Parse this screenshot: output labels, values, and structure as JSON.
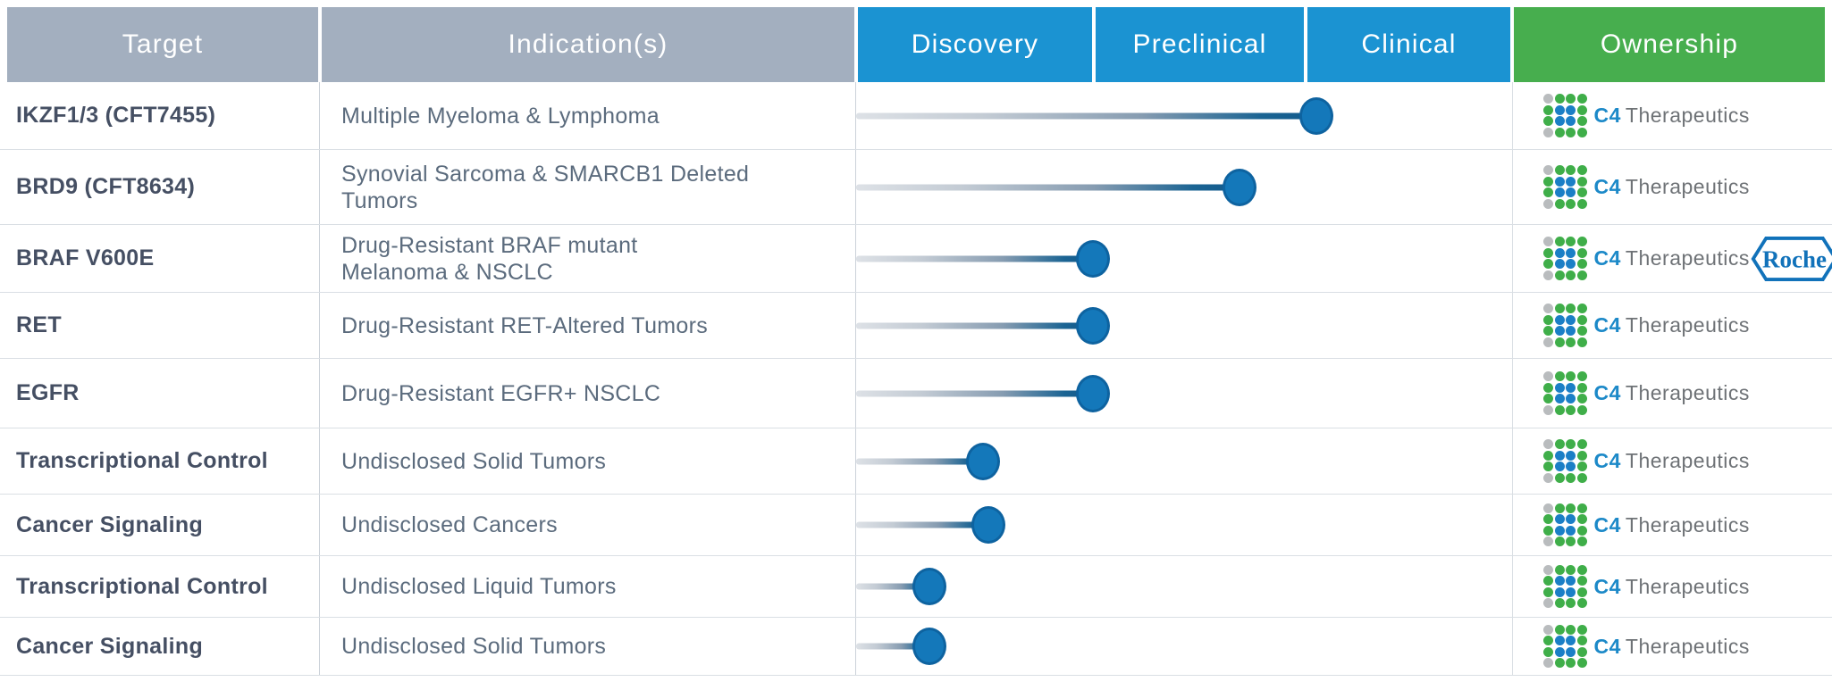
{
  "colors": {
    "header_gray": "#a3afbf",
    "header_blue": "#1b93d2",
    "header_green": "#47ae4e",
    "target_text": "#454f63",
    "indication_text": "#5b6b7d",
    "bar_dark": "#11598c",
    "dot_fill": "#1478ba",
    "dot_stroke": "#0e63a0"
  },
  "table": {
    "columns": [
      {
        "label": "Target"
      },
      {
        "label": "Indication(s)"
      },
      {
        "label": "Discovery"
      },
      {
        "label": "Preclinical"
      },
      {
        "label": "Clinical"
      },
      {
        "label": "Ownership"
      }
    ],
    "rows": [
      {
        "target": "IKZF1/3 (CFT7455)",
        "indication": "Multiple Myeloma & Lymphoma",
        "stage_reached": "Clinical",
        "progress_pct": 70.2,
        "ownership": [
          "C4 Therapeutics"
        ]
      },
      {
        "target": "BRD9 (CFT8634)",
        "indication": "Synovial Sarcoma & SMARCB1 Deleted\nTumors",
        "stage_reached": "Preclinical",
        "progress_pct": 58.5,
        "ownership": [
          "C4 Therapeutics"
        ]
      },
      {
        "target": "BRAF V600E",
        "indication": "Drug-Resistant BRAF mutant\nMelanoma & NSCLC",
        "stage_reached": "Preclinical",
        "progress_pct": 36.1,
        "ownership": [
          "C4 Therapeutics",
          "Roche"
        ]
      },
      {
        "target": "RET",
        "indication": "Drug-Resistant RET-Altered Tumors",
        "stage_reached": "Preclinical",
        "progress_pct": 36.1,
        "ownership": [
          "C4 Therapeutics"
        ]
      },
      {
        "target": "EGFR",
        "indication": "Drug-Resistant EGFR+ NSCLC",
        "stage_reached": "Preclinical",
        "progress_pct": 36.1,
        "ownership": [
          "C4 Therapeutics"
        ]
      },
      {
        "target": "Transcriptional Control",
        "indication": "Undisclosed Solid Tumors",
        "stage_reached": "Discovery",
        "progress_pct": 19.4,
        "ownership": [
          "C4 Therapeutics"
        ]
      },
      {
        "target": "Cancer Signaling",
        "indication": "Undisclosed Cancers",
        "stage_reached": "Discovery",
        "progress_pct": 20.2,
        "ownership": [
          "C4 Therapeutics"
        ]
      },
      {
        "target": "Transcriptional Control",
        "indication": "Undisclosed Liquid Tumors",
        "stage_reached": "Discovery",
        "progress_pct": 11.2,
        "ownership": [
          "C4 Therapeutics"
        ]
      },
      {
        "target": "Cancer Signaling",
        "indication": "Undisclosed Solid Tumors",
        "stage_reached": "Discovery",
        "progress_pct": 11.2,
        "ownership": [
          "C4 Therapeutics"
        ]
      }
    ]
  },
  "logos": {
    "c4": {
      "name": "C4 Therapeutics",
      "text_c4": "C4",
      "text_therapeutics": "Therapeutics",
      "dot_colors": {
        "x": "#b9bcbe",
        "g": "#3fae49",
        "b": "#1b7fc6"
      },
      "dots": [
        "xggg",
        "gbbg",
        "gbbg",
        "xggg"
      ]
    },
    "roche": {
      "name": "Roche",
      "label": "Roche",
      "color": "#1172ba"
    }
  },
  "chart_data": {
    "type": "bar",
    "orientation": "horizontal",
    "stages": [
      "Discovery",
      "Preclinical",
      "Clinical"
    ],
    "categories": [
      "IKZF1/3 (CFT7455)",
      "BRD9 (CFT8634)",
      "BRAF V600E",
      "RET",
      "EGFR",
      "Transcriptional Control",
      "Cancer Signaling",
      "Transcriptional Control",
      "Cancer Signaling"
    ],
    "values_stage_units": [
      2.05,
      1.69,
      1.0,
      1.0,
      1.0,
      0.54,
      0.56,
      0.31,
      0.31
    ],
    "value_scale": "0 = start of Discovery, 1 = start of Preclinical, 2 = start of Clinical, 3 = end of Clinical",
    "legend_position": "none",
    "grid": false
  }
}
